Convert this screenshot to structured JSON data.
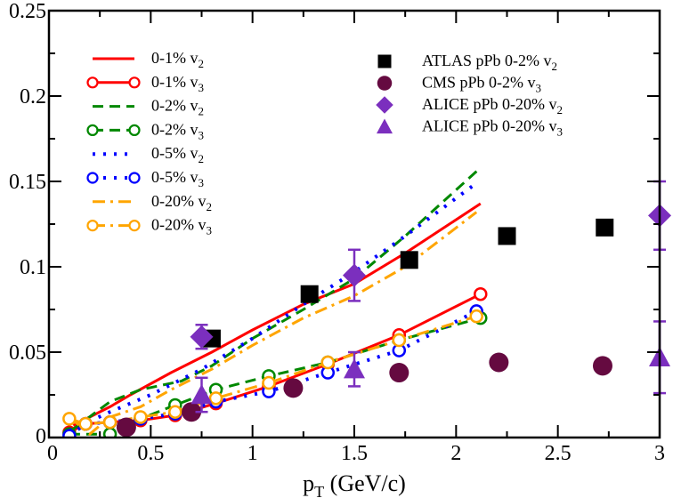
{
  "chart_data": {
    "type": "line",
    "title": "",
    "xlabel": "p_T (GeV/c)",
    "xlabel_main": "p",
    "xlabel_sub": "T",
    "xlabel_rest": " (GeV/c)",
    "ylabel": "",
    "xlim": [
      0,
      3
    ],
    "ylim": [
      0,
      0.25
    ],
    "grid": false,
    "legend_position": "upper-left and upper-right (two columns)",
    "x_ticks": [
      {
        "v": 0,
        "label": "0"
      },
      {
        "v": 0.5,
        "label": "0.5"
      },
      {
        "v": 1,
        "label": "1"
      },
      {
        "v": 1.5,
        "label": "1.5"
      },
      {
        "v": 2,
        "label": "2"
      },
      {
        "v": 2.5,
        "label": "2.5"
      },
      {
        "v": 3,
        "label": "3"
      }
    ],
    "x_minor_ticks": [
      0.25,
      0.75,
      1.25,
      1.75,
      2.25,
      2.75
    ],
    "y_ticks": [
      {
        "v": 0,
        "label": "0"
      },
      {
        "v": 0.05,
        "label": "0.05"
      },
      {
        "v": 0.1,
        "label": "0.1"
      },
      {
        "v": 0.15,
        "label": "0.15"
      },
      {
        "v": 0.2,
        "label": "0.2"
      },
      {
        "v": 0.25,
        "label": "0.25"
      }
    ],
    "y_minor_ticks": [
      0.025,
      0.075,
      0.125,
      0.175,
      0.225
    ],
    "series": [
      {
        "name": "0-1% v2",
        "label": "0-1% v",
        "sub": "2",
        "color": "#ff0000",
        "dash": "",
        "markers": false,
        "x": [
          0.12,
          0.2,
          0.3,
          0.4,
          0.6,
          0.8,
          1.0,
          1.25,
          1.5,
          1.75,
          2.12
        ],
        "y": [
          0.007,
          0.012,
          0.018,
          0.025,
          0.038,
          0.05,
          0.063,
          0.078,
          0.09,
          0.108,
          0.137
        ]
      },
      {
        "name": "0-1% v3",
        "label": "0-1% v",
        "sub": "3",
        "color": "#ff0000",
        "dash": "",
        "markers": true,
        "x": [
          0.1,
          0.18,
          0.3,
          0.45,
          0.62,
          0.82,
          1.08,
          1.37,
          1.72,
          2.12
        ],
        "y": [
          0.003,
          0.008,
          0.009,
          0.01,
          0.013,
          0.02,
          0.03,
          0.043,
          0.06,
          0.084
        ]
      },
      {
        "name": "0-2% v2",
        "label": "0-2% v",
        "sub": "2",
        "color": "#008800",
        "dash": "12,7",
        "markers": false,
        "x": [
          0.12,
          0.3,
          0.45,
          0.65,
          0.8,
          1.0,
          1.25,
          1.5,
          1.75,
          2.12
        ],
        "y": [
          0.005,
          0.021,
          0.028,
          0.033,
          0.042,
          0.058,
          0.075,
          0.093,
          0.118,
          0.158
        ]
      },
      {
        "name": "0-2% v3",
        "label": "0-2% v",
        "sub": "3",
        "color": "#008800",
        "dash": "12,7",
        "markers": true,
        "x": [
          0.1,
          0.3,
          0.45,
          0.62,
          0.82,
          1.08,
          1.37,
          1.72,
          2.12
        ],
        "y": [
          0.002,
          0.002,
          0.011,
          0.019,
          0.028,
          0.036,
          0.044,
          0.057,
          0.07
        ]
      },
      {
        "name": "0-5% v2",
        "label": "0-5% v",
        "sub": "2",
        "color": "#0000ff",
        "dash": "3,9",
        "markers": false,
        "x": [
          0.1,
          0.3,
          0.5,
          0.75,
          1.0,
          1.25,
          1.5,
          1.75,
          2.1
        ],
        "y": [
          0.004,
          0.015,
          0.025,
          0.04,
          0.058,
          0.078,
          0.097,
          0.118,
          0.149
        ]
      },
      {
        "name": "0-5% v3",
        "label": "0-5% v",
        "sub": "3",
        "color": "#0000ff",
        "dash": "3,9",
        "markers": true,
        "x": [
          0.1,
          0.18,
          0.3,
          0.45,
          0.62,
          0.82,
          1.08,
          1.37,
          1.72,
          2.1
        ],
        "y": [
          0.001,
          0.008,
          0.009,
          0.011,
          0.014,
          0.021,
          0.027,
          0.038,
          0.051,
          0.074
        ]
      },
      {
        "name": "0-20% v2",
        "label": "0-20% v",
        "sub": "2",
        "color": "#ffa500",
        "dash": "14,6,3,6",
        "markers": false,
        "x": [
          0.1,
          0.2,
          0.3,
          0.45,
          0.6,
          0.8,
          1.0,
          1.25,
          1.5,
          1.75,
          2.1
        ],
        "y": [
          0.012,
          0.002,
          0.012,
          0.018,
          0.028,
          0.04,
          0.054,
          0.07,
          0.083,
          0.1,
          0.132
        ]
      },
      {
        "name": "0-20% v3",
        "label": "0-20% v",
        "sub": "3",
        "color": "#ffa500",
        "dash": "14,6,3,6",
        "markers": true,
        "x": [
          0.1,
          0.18,
          0.3,
          0.45,
          0.62,
          0.82,
          1.08,
          1.37,
          1.72,
          2.1
        ],
        "y": [
          0.011,
          0.008,
          0.009,
          0.012,
          0.015,
          0.023,
          0.032,
          0.044,
          0.057,
          0.071
        ]
      }
    ],
    "experiments": [
      {
        "name": "ATLAS pPb 0-2% v2",
        "label": "ATLAS pPb 0-2% v",
        "sub": "2",
        "marker": "square",
        "color": "#000000",
        "x": [
          0.8,
          1.28,
          1.77,
          2.25,
          2.73
        ],
        "y": [
          0.058,
          0.084,
          0.104,
          0.118,
          0.123
        ],
        "err": [
          0,
          0,
          0,
          0,
          0
        ]
      },
      {
        "name": "CMS pPb 0-2% v3",
        "label": "CMS pPb 0-2% v",
        "sub": "3",
        "marker": "circle",
        "color": "#650a40",
        "x": [
          0.38,
          0.7,
          1.2,
          1.72,
          2.21,
          2.72
        ],
        "y": [
          0.006,
          0.015,
          0.029,
          0.038,
          0.044,
          0.042
        ],
        "err": [
          0,
          0,
          0,
          0,
          0,
          0
        ]
      },
      {
        "name": "ALICE pPb 0-20% v2",
        "label": "ALICE pPb 0-20% v",
        "sub": "2",
        "marker": "diamond",
        "color": "#7b2fbe",
        "x": [
          0.75,
          1.5,
          3.0
        ],
        "y": [
          0.059,
          0.095,
          0.13
        ],
        "err": [
          0.007,
          0.015,
          0.02
        ]
      },
      {
        "name": "ALICE pPb 0-20% v3",
        "label": "ALICE pPb 0-20% v",
        "sub": "3",
        "marker": "triangle",
        "color": "#7b2fbe",
        "x": [
          0.75,
          1.5,
          3.0
        ],
        "y": [
          0.025,
          0.04,
          0.047
        ],
        "err": [
          0.01,
          0.01,
          0.021
        ]
      }
    ]
  }
}
